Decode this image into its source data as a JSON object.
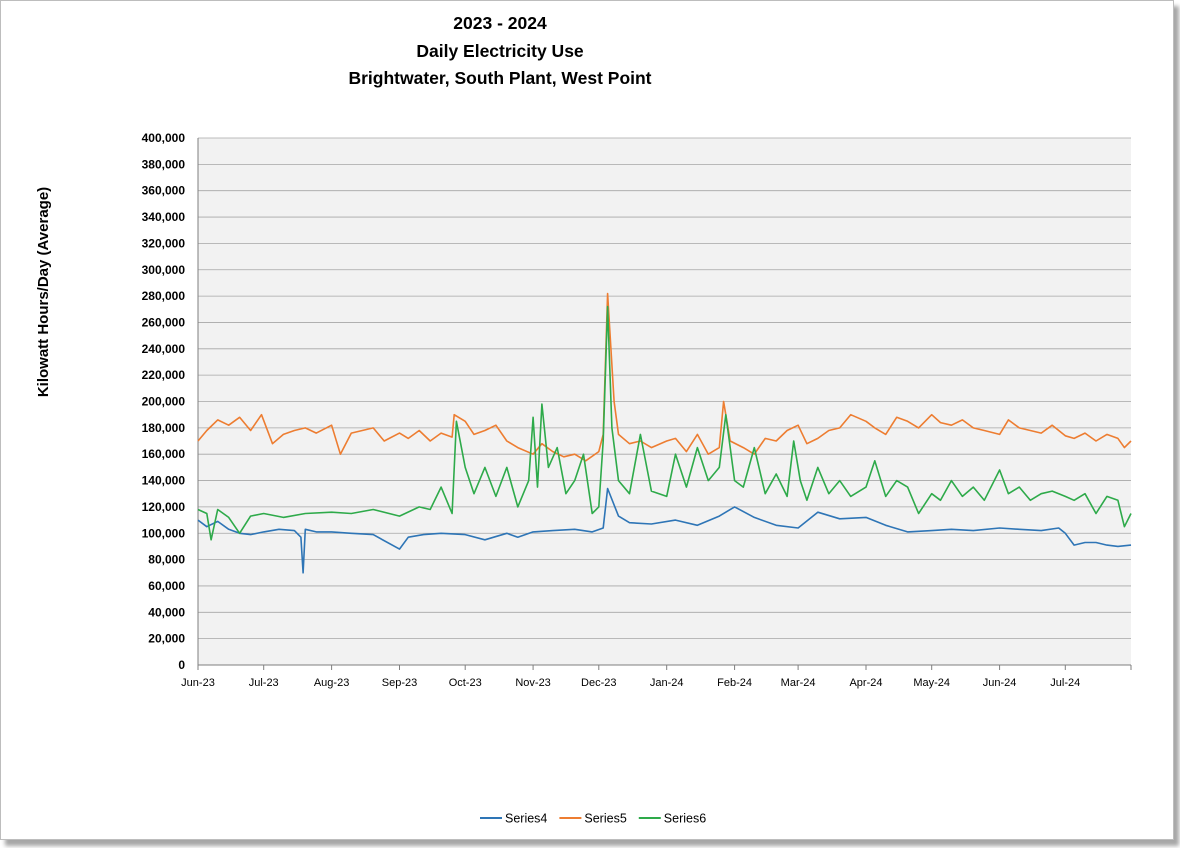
{
  "chart_data": {
    "type": "line",
    "title_lines": [
      "2023 - 2024",
      "Daily Electricity Use",
      "Brightwater, South Plant, West Point"
    ],
    "xlabel": "",
    "ylabel": "Kilowatt Hours/Day (Average)",
    "ylim": [
      0,
      400000
    ],
    "y_tick_labels": [
      "0",
      "20,000",
      "40,000",
      "60,000",
      "80,000",
      "100,000",
      "120,000",
      "140,000",
      "160,000",
      "180,000",
      "200,000",
      "220,000",
      "240,000",
      "260,000",
      "280,000",
      "300,000",
      "320,000",
      "340,000",
      "360,000",
      "380,000",
      "400,000"
    ],
    "x_range": [
      "2023-06-01",
      "2024-07-31"
    ],
    "x_tick_labels": [
      "Jun-23",
      "Jul-23",
      "Aug-23",
      "Sep-23",
      "Oct-23",
      "Nov-23",
      "Dec-23",
      "Jan-24",
      "Feb-24",
      "Mar-24",
      "Apr-24",
      "May-24",
      "Jun-24",
      "Jul-24"
    ],
    "grid": "horizontal",
    "legend_position": "bottom",
    "series": [
      {
        "name": "Series4",
        "color": "#2E75B6",
        "x": [
          "2023-06-01",
          "2023-06-05",
          "2023-06-10",
          "2023-06-15",
          "2023-06-20",
          "2023-06-25",
          "2023-07-01",
          "2023-07-08",
          "2023-07-15",
          "2023-07-18",
          "2023-07-19",
          "2023-07-20",
          "2023-07-25",
          "2023-08-01",
          "2023-08-10",
          "2023-08-20",
          "2023-09-01",
          "2023-09-05",
          "2023-09-12",
          "2023-09-20",
          "2023-10-01",
          "2023-10-10",
          "2023-10-20",
          "2023-10-25",
          "2023-11-01",
          "2023-11-10",
          "2023-11-20",
          "2023-11-28",
          "2023-12-03",
          "2023-12-05",
          "2023-12-10",
          "2023-12-15",
          "2023-12-25",
          "2024-01-05",
          "2024-01-15",
          "2024-01-25",
          "2024-02-01",
          "2024-02-10",
          "2024-02-20",
          "2024-03-01",
          "2024-03-10",
          "2024-03-20",
          "2024-04-01",
          "2024-04-10",
          "2024-04-20",
          "2024-05-01",
          "2024-05-10",
          "2024-05-20",
          "2024-06-01",
          "2024-06-10",
          "2024-06-20",
          "2024-06-28",
          "2024-07-01",
          "2024-07-05",
          "2024-07-10",
          "2024-07-15",
          "2024-07-20",
          "2024-07-25",
          "2024-07-31"
        ],
        "y": [
          110000,
          105000,
          109000,
          103000,
          100000,
          99000,
          101000,
          103000,
          102000,
          97000,
          70000,
          103000,
          101000,
          101000,
          100000,
          99000,
          88000,
          97000,
          99000,
          100000,
          99000,
          95000,
          100000,
          97000,
          101000,
          102000,
          103000,
          101000,
          104000,
          134000,
          113000,
          108000,
          107000,
          110000,
          106000,
          113000,
          120000,
          112000,
          106000,
          104000,
          116000,
          111000,
          112000,
          106000,
          101000,
          102000,
          103000,
          102000,
          104000,
          103000,
          102000,
          104000,
          100000,
          91000,
          93000,
          93000,
          91000,
          90000,
          91000
        ]
      },
      {
        "name": "Series5",
        "color": "#ED7D31",
        "x": [
          "2023-06-01",
          "2023-06-05",
          "2023-06-10",
          "2023-06-15",
          "2023-06-20",
          "2023-06-25",
          "2023-06-30",
          "2023-07-05",
          "2023-07-10",
          "2023-07-15",
          "2023-07-20",
          "2023-07-25",
          "2023-08-01",
          "2023-08-05",
          "2023-08-10",
          "2023-08-15",
          "2023-08-20",
          "2023-08-25",
          "2023-09-01",
          "2023-09-05",
          "2023-09-10",
          "2023-09-15",
          "2023-09-20",
          "2023-09-25",
          "2023-09-26",
          "2023-10-01",
          "2023-10-05",
          "2023-10-10",
          "2023-10-15",
          "2023-10-20",
          "2023-10-25",
          "2023-11-01",
          "2023-11-05",
          "2023-11-10",
          "2023-11-15",
          "2023-11-20",
          "2023-11-25",
          "2023-12-01",
          "2023-12-03",
          "2023-12-05",
          "2023-12-08",
          "2023-12-10",
          "2023-12-15",
          "2023-12-20",
          "2023-12-25",
          "2024-01-01",
          "2024-01-05",
          "2024-01-10",
          "2024-01-15",
          "2024-01-20",
          "2024-01-25",
          "2024-01-27",
          "2024-01-30",
          "2024-02-05",
          "2024-02-10",
          "2024-02-15",
          "2024-02-20",
          "2024-02-25",
          "2024-03-01",
          "2024-03-05",
          "2024-03-10",
          "2024-03-15",
          "2024-03-20",
          "2024-03-25",
          "2024-04-01",
          "2024-04-05",
          "2024-04-10",
          "2024-04-15",
          "2024-04-20",
          "2024-04-25",
          "2024-05-01",
          "2024-05-05",
          "2024-05-10",
          "2024-05-15",
          "2024-05-20",
          "2024-05-25",
          "2024-06-01",
          "2024-06-05",
          "2024-06-10",
          "2024-06-15",
          "2024-06-20",
          "2024-06-25",
          "2024-07-01",
          "2024-07-05",
          "2024-07-10",
          "2024-07-15",
          "2024-07-20",
          "2024-07-25",
          "2024-07-28",
          "2024-07-31"
        ],
        "y": [
          170000,
          178000,
          186000,
          182000,
          188000,
          178000,
          190000,
          168000,
          175000,
          178000,
          180000,
          176000,
          182000,
          160000,
          176000,
          178000,
          180000,
          170000,
          176000,
          172000,
          178000,
          170000,
          176000,
          173000,
          190000,
          185000,
          175000,
          178000,
          182000,
          170000,
          165000,
          160000,
          168000,
          162000,
          158000,
          160000,
          155000,
          162000,
          175000,
          282000,
          200000,
          175000,
          168000,
          170000,
          165000,
          170000,
          172000,
          162000,
          175000,
          160000,
          165000,
          200000,
          170000,
          165000,
          160000,
          172000,
          170000,
          178000,
          182000,
          168000,
          172000,
          178000,
          180000,
          190000,
          185000,
          180000,
          175000,
          188000,
          185000,
          180000,
          190000,
          184000,
          182000,
          186000,
          180000,
          178000,
          175000,
          186000,
          180000,
          178000,
          176000,
          182000,
          174000,
          172000,
          176000,
          170000,
          175000,
          172000,
          165000,
          170000
        ]
      },
      {
        "name": "Series6",
        "color": "#2EAA4A",
        "x": [
          "2023-06-01",
          "2023-06-05",
          "2023-06-07",
          "2023-06-10",
          "2023-06-15",
          "2023-06-20",
          "2023-06-25",
          "2023-07-01",
          "2023-07-10",
          "2023-07-20",
          "2023-08-01",
          "2023-08-10",
          "2023-08-20",
          "2023-09-01",
          "2023-09-10",
          "2023-09-15",
          "2023-09-20",
          "2023-09-25",
          "2023-09-27",
          "2023-10-01",
          "2023-10-05",
          "2023-10-10",
          "2023-10-15",
          "2023-10-20",
          "2023-10-25",
          "2023-10-30",
          "2023-11-01",
          "2023-11-03",
          "2023-11-05",
          "2023-11-08",
          "2023-11-12",
          "2023-11-16",
          "2023-11-20",
          "2023-11-24",
          "2023-11-28",
          "2023-12-01",
          "2023-12-03",
          "2023-12-05",
          "2023-12-07",
          "2023-12-10",
          "2023-12-15",
          "2023-12-20",
          "2023-12-25",
          "2024-01-01",
          "2024-01-05",
          "2024-01-10",
          "2024-01-15",
          "2024-01-20",
          "2024-01-25",
          "2024-01-28",
          "2024-02-01",
          "2024-02-05",
          "2024-02-10",
          "2024-02-15",
          "2024-02-20",
          "2024-02-25",
          "2024-02-28",
          "2024-03-02",
          "2024-03-05",
          "2024-03-10",
          "2024-03-15",
          "2024-03-20",
          "2024-03-25",
          "2024-04-01",
          "2024-04-05",
          "2024-04-10",
          "2024-04-15",
          "2024-04-20",
          "2024-04-25",
          "2024-05-01",
          "2024-05-05",
          "2024-05-10",
          "2024-05-15",
          "2024-05-20",
          "2024-05-25",
          "2024-06-01",
          "2024-06-05",
          "2024-06-10",
          "2024-06-15",
          "2024-06-20",
          "2024-06-25",
          "2024-07-01",
          "2024-07-05",
          "2024-07-10",
          "2024-07-15",
          "2024-07-20",
          "2024-07-25",
          "2024-07-28",
          "2024-07-31"
        ],
        "y": [
          118000,
          115000,
          95000,
          118000,
          112000,
          100000,
          113000,
          115000,
          112000,
          115000,
          116000,
          115000,
          118000,
          113000,
          120000,
          118000,
          135000,
          115000,
          185000,
          150000,
          130000,
          150000,
          128000,
          150000,
          120000,
          140000,
          188000,
          135000,
          198000,
          150000,
          165000,
          130000,
          140000,
          160000,
          115000,
          120000,
          170000,
          272000,
          180000,
          140000,
          130000,
          175000,
          132000,
          128000,
          160000,
          135000,
          165000,
          140000,
          150000,
          190000,
          140000,
          135000,
          165000,
          130000,
          145000,
          128000,
          170000,
          140000,
          125000,
          150000,
          130000,
          140000,
          128000,
          135000,
          155000,
          128000,
          140000,
          135000,
          115000,
          130000,
          125000,
          140000,
          128000,
          135000,
          125000,
          148000,
          130000,
          135000,
          125000,
          130000,
          132000,
          128000,
          125000,
          130000,
          115000,
          128000,
          125000,
          105000,
          115000
        ]
      }
    ]
  }
}
